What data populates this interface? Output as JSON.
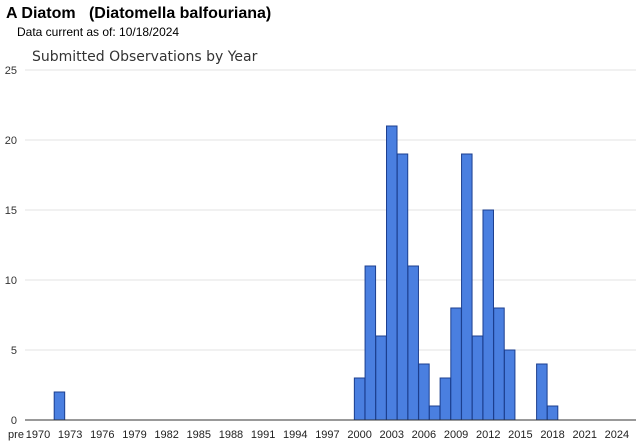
{
  "header": {
    "title": "A Diatom   (Diatomella balfouriana)",
    "date_label": "Data current as of: 10/18/2024"
  },
  "colors": {
    "bar_fill": "#4a7fe0",
    "bar_stroke": "#1c3f8f",
    "grid": "#e3e3e3"
  },
  "chart_data": {
    "type": "bar",
    "title": "Submitted Observations by Year",
    "xlabel": "",
    "ylabel": "",
    "ylim": [
      0,
      25
    ],
    "yticks": [
      0,
      5,
      10,
      15,
      20,
      25
    ],
    "grid": true,
    "categories": [
      "pre",
      "1970",
      "1971",
      "1972",
      "1973",
      "1974",
      "1975",
      "1976",
      "1977",
      "1978",
      "1979",
      "1980",
      "1981",
      "1982",
      "1983",
      "1984",
      "1985",
      "1986",
      "1987",
      "1988",
      "1989",
      "1990",
      "1991",
      "1992",
      "1993",
      "1994",
      "1995",
      "1996",
      "1997",
      "1998",
      "1999",
      "2000",
      "2001",
      "2002",
      "2003",
      "2004",
      "2005",
      "2006",
      "2007",
      "2008",
      "2009",
      "2010",
      "2011",
      "2012",
      "2013",
      "2014",
      "2015",
      "2016",
      "2017",
      "2018",
      "2019",
      "2020",
      "2021",
      "2022",
      "2023",
      "2024"
    ],
    "values": [
      0,
      0,
      0,
      2,
      0,
      0,
      0,
      0,
      0,
      0,
      0,
      0,
      0,
      0,
      0,
      0,
      0,
      0,
      0,
      0,
      0,
      0,
      0,
      0,
      0,
      0,
      0,
      0,
      0,
      0,
      0,
      3,
      11,
      6,
      21,
      19,
      11,
      4,
      1,
      3,
      8,
      19,
      6,
      15,
      8,
      5,
      0,
      0,
      4,
      1,
      0,
      0,
      0,
      0,
      0,
      0
    ],
    "tick_labels": [
      "pre",
      "1970",
      "1973",
      "1976",
      "1979",
      "1982",
      "1985",
      "1988",
      "1991",
      "1994",
      "1997",
      "2000",
      "2003",
      "2006",
      "2009",
      "2012",
      "2015",
      "2018",
      "2021",
      "2024"
    ]
  }
}
